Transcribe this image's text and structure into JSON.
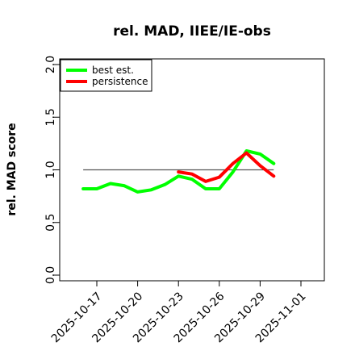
{
  "chart_data": {
    "type": "line",
    "title": "rel. MAD, IIEE/IE-obs",
    "xlabel": "",
    "ylabel": "rel. MAD score",
    "ylim": [
      0,
      2
    ],
    "xlim": [
      "2025-10-14",
      "2025-11-02"
    ],
    "yticks": [
      "0.0",
      "0.5",
      "1.0",
      "1.5",
      "2.0"
    ],
    "xticks": [
      "2025-10-17",
      "2025-10-20",
      "2025-10-23",
      "2025-10-26",
      "2025-10-29",
      "2025-11-01"
    ],
    "legend_position": "top-left",
    "reference_line": {
      "y": 1.0,
      "from": "2025-10-16",
      "to": "2025-10-30",
      "color": "#555555"
    },
    "series": [
      {
        "name": "best est.",
        "color": "#00ff00",
        "x": [
          "2025-10-16",
          "2025-10-17",
          "2025-10-18",
          "2025-10-19",
          "2025-10-20",
          "2025-10-21",
          "2025-10-22",
          "2025-10-23",
          "2025-10-24",
          "2025-10-25",
          "2025-10-26",
          "2025-10-27",
          "2025-10-28",
          "2025-10-29",
          "2025-10-30"
        ],
        "values": [
          0.82,
          0.82,
          0.87,
          0.85,
          0.79,
          0.81,
          0.86,
          0.94,
          0.91,
          0.82,
          0.82,
          0.98,
          1.18,
          1.15,
          1.06
        ]
      },
      {
        "name": "persistence",
        "color": "#ff0000",
        "x": [
          "2025-10-23",
          "2025-10-24",
          "2025-10-25",
          "2025-10-26",
          "2025-10-27",
          "2025-10-28",
          "2025-10-29",
          "2025-10-30"
        ],
        "values": [
          0.98,
          0.96,
          0.89,
          0.93,
          1.06,
          1.16,
          1.04,
          0.94
        ]
      }
    ]
  }
}
